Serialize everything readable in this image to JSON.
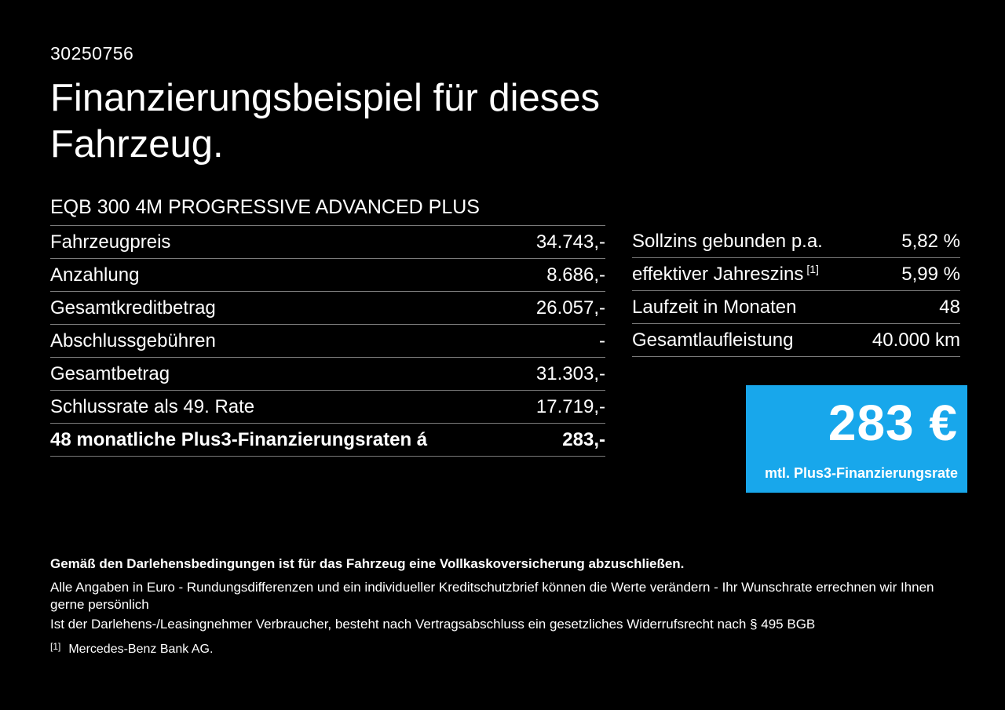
{
  "page": {
    "id_number": "30250756",
    "title": "Finanzierungsbeispiel für dieses Fahrzeug.",
    "model": "EQB 300 4M PROGRESSIVE ADVANCED PLUS"
  },
  "left_table": {
    "rows": [
      {
        "label": "Fahrzeugpreis",
        "value": "34.743,-"
      },
      {
        "label": "Anzahlung",
        "value": "8.686,-"
      },
      {
        "label": "Gesamtkreditbetrag",
        "value": "26.057,-"
      },
      {
        "label": "Abschlussgebühren",
        "value": "-"
      },
      {
        "label": "Gesamtbetrag",
        "value": "31.303,-"
      },
      {
        "label": "Schlussrate als 49. Rate",
        "value": "17.719,-"
      },
      {
        "label": "48 monatliche Plus3-Finanzierungsraten á",
        "value": "283,-"
      }
    ]
  },
  "right_table": {
    "rows": [
      {
        "label": "Sollzins gebunden p.a.",
        "value": "5,82 %"
      },
      {
        "label": "effektiver Jahreszins",
        "footnote": "[1]",
        "value": "5,99 %"
      },
      {
        "label": "Laufzeit in Monaten",
        "value": "48"
      },
      {
        "label": "Gesamtlaufleistung",
        "value": "40.000 km"
      }
    ]
  },
  "rate_box": {
    "amount": "283 €",
    "caption": "mtl. Plus3-Finanzierungsrate"
  },
  "footer": {
    "line1": "Gemäß den Darlehensbedingungen ist für das Fahrzeug eine Vollkaskoversicherung abzuschließen.",
    "line2": "Alle Angaben in Euro - Rundungsdifferenzen und ein individueller Kreditschutzbrief können die Werte verändern - Ihr Wunschrate errechnen wir Ihnen gerne persönlich",
    "line3": "Ist der Darlehens-/Leasingnehmer Verbraucher, besteht nach Vertragsabschluss ein gesetzliches Widerrufsrecht nach § 495 BGB",
    "footnote_marker": "[1]",
    "footnote_text": "Mercedes-Benz Bank AG."
  },
  "colors": {
    "background": "#000000",
    "text": "#ffffff",
    "divider": "#7a7a7a",
    "accent_blue": "#18a7eb"
  }
}
